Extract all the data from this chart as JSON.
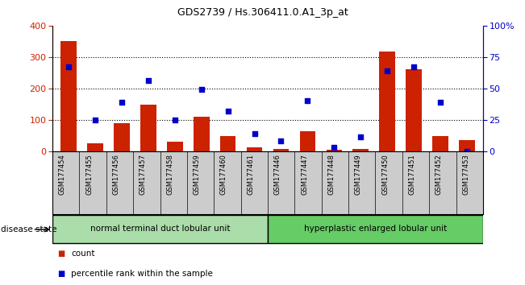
{
  "title": "GDS2739 / Hs.306411.0.A1_3p_at",
  "samples": [
    "GSM177454",
    "GSM177455",
    "GSM177456",
    "GSM177457",
    "GSM177458",
    "GSM177459",
    "GSM177460",
    "GSM177461",
    "GSM177446",
    "GSM177447",
    "GSM177448",
    "GSM177449",
    "GSM177450",
    "GSM177451",
    "GSM177452",
    "GSM177453"
  ],
  "counts": [
    350,
    25,
    90,
    148,
    30,
    110,
    48,
    12,
    8,
    62,
    5,
    8,
    317,
    260,
    48,
    35
  ],
  "percentiles": [
    67,
    25,
    39,
    56,
    25,
    49,
    32,
    14,
    8,
    40,
    3,
    11,
    64,
    67,
    39,
    0
  ],
  "group1_label": "normal terminal duct lobular unit",
  "group2_label": "hyperplastic enlarged lobular unit",
  "bar_color": "#cc2200",
  "dot_color": "#0000cc",
  "group1_bg": "#aaddaa",
  "group2_bg": "#66cc66",
  "xlabel_bg": "#cccccc",
  "left_ylim": [
    0,
    400
  ],
  "right_ylim": [
    0,
    100
  ],
  "left_yticks": [
    0,
    100,
    200,
    300,
    400
  ],
  "right_yticks": [
    0,
    25,
    50,
    75,
    100
  ],
  "right_yticklabels": [
    "0",
    "25",
    "50",
    "75",
    "100%"
  ],
  "disease_state_label": "disease state",
  "legend_count_label": "count",
  "legend_percentile_label": "percentile rank within the sample"
}
